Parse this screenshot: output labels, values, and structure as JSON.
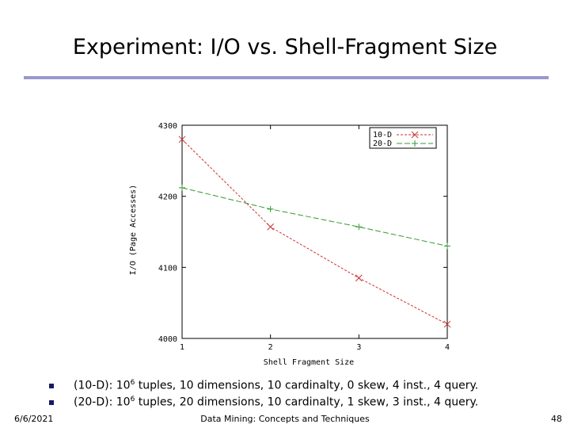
{
  "slide": {
    "title": "Experiment:  I/O vs. Shell-Fragment Size",
    "footer_date": "6/6/2021",
    "footer_center": "Data Mining: Concepts and Techniques",
    "footer_page": "48"
  },
  "bullets": [
    {
      "pre": "(10-D): 10",
      "sup": "6",
      "post": " tuples, 10 dimensions, 10 cardinalty, 0 skew, 4 inst., 4 query."
    },
    {
      "pre": "(20-D): 10",
      "sup": "6",
      "post": " tuples, 20 dimensions, 10 cardinalty, 1 skew, 3 inst., 4 query."
    }
  ],
  "chart_data": {
    "type": "line",
    "xlabel": "Shell Fragment Size",
    "ylabel": "I/O (Page Accesses)",
    "xlim": [
      1,
      4
    ],
    "ylim": [
      4000,
      4300
    ],
    "xticks": [
      "1",
      "2",
      "3",
      "4"
    ],
    "yticks": [
      "4000",
      "4100",
      "4200",
      "4300"
    ],
    "legend": "top-right",
    "series": [
      {
        "name": "10-D",
        "color": "#cc3333",
        "marker": "x",
        "x": [
          1,
          2,
          3,
          4
        ],
        "y": [
          4280,
          4157,
          4085,
          4020
        ]
      },
      {
        "name": "20-D",
        "color": "#339933",
        "marker": "+",
        "x": [
          1,
          2,
          3,
          4
        ],
        "y": [
          4212,
          4182,
          4157,
          4130
        ]
      }
    ]
  }
}
